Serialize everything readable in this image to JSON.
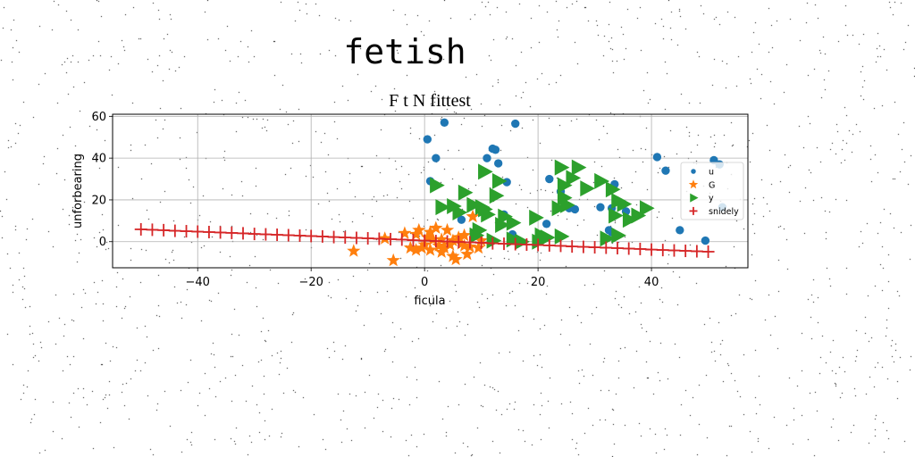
{
  "page": {
    "suptitle": "fetish"
  },
  "chart_data": {
    "type": "scatter",
    "title": "F t N fittest",
    "xlabel": "ficula",
    "ylabel": "unforbearing",
    "xlim": [
      -55,
      57
    ],
    "ylim": [
      -12.5,
      61
    ],
    "xticks": [
      -40,
      -20,
      0,
      20,
      40
    ],
    "yticks": [
      0,
      20,
      40,
      60
    ],
    "grid": true,
    "legend_position": "right",
    "series": [
      {
        "name": "u",
        "marker": "circle",
        "color": "#1f77b4",
        "points": [
          [
            0.5,
            49
          ],
          [
            2,
            40
          ],
          [
            3.5,
            57
          ],
          [
            16,
            56.5
          ],
          [
            12,
            44.5
          ],
          [
            12.5,
            44
          ],
          [
            11,
            40
          ],
          [
            13,
            37.5
          ],
          [
            1,
            29
          ],
          [
            22,
            30
          ],
          [
            14.5,
            28.5
          ],
          [
            33.5,
            27.5
          ],
          [
            24,
            24
          ],
          [
            25.5,
            16
          ],
          [
            26.5,
            15.5
          ],
          [
            31,
            16.5
          ],
          [
            33,
            16
          ],
          [
            35.5,
            14.5
          ],
          [
            14,
            13
          ],
          [
            21.5,
            8.5
          ],
          [
            6.5,
            10.5
          ],
          [
            15.5,
            3.5
          ],
          [
            32.5,
            5.5
          ],
          [
            33,
            4.5
          ],
          [
            45,
            5.5
          ],
          [
            41,
            40.5
          ],
          [
            42.5,
            34
          ],
          [
            51,
            39
          ],
          [
            52,
            37
          ],
          [
            52.5,
            16.5
          ],
          [
            49.5,
            0.5
          ]
        ]
      },
      {
        "name": "G",
        "marker": "star",
        "color": "#ff7f0e",
        "points": [
          [
            -12.5,
            -4.5
          ],
          [
            -5.5,
            -9
          ],
          [
            -7,
            1.5
          ],
          [
            -3.5,
            4
          ],
          [
            -1.5,
            3.5
          ],
          [
            -2.5,
            -3
          ],
          [
            -1.5,
            -4
          ],
          [
            -0.5,
            -3
          ],
          [
            0,
            -1.5
          ],
          [
            0.5,
            2
          ],
          [
            1,
            -4
          ],
          [
            1,
            4.5
          ],
          [
            2,
            6.5
          ],
          [
            2.5,
            -2
          ],
          [
            3,
            1
          ],
          [
            3.5,
            -3
          ],
          [
            4,
            5.5
          ],
          [
            4.5,
            -1.5
          ],
          [
            5,
            0.5
          ],
          [
            5,
            -7
          ],
          [
            5.5,
            -8.5
          ],
          [
            6,
            2
          ],
          [
            6.5,
            -1
          ],
          [
            7,
            -2
          ],
          [
            7.5,
            -6
          ],
          [
            8,
            -2.5
          ],
          [
            8.5,
            12
          ],
          [
            9,
            4
          ],
          [
            9.5,
            -3
          ],
          [
            10,
            0.5
          ],
          [
            -1,
            5.5
          ],
          [
            1.5,
            1
          ],
          [
            3,
            -5
          ],
          [
            7,
            3
          ]
        ]
      },
      {
        "name": "y",
        "marker": "triangle-right",
        "color": "#2ca02c",
        "points": [
          [
            2,
            27
          ],
          [
            7,
            23.5
          ],
          [
            5,
            17
          ],
          [
            3,
            16.5
          ],
          [
            6,
            14
          ],
          [
            8.5,
            17.5
          ],
          [
            10,
            16.5
          ],
          [
            10.5,
            33.5
          ],
          [
            13,
            29
          ],
          [
            12.5,
            22
          ],
          [
            10.5,
            15.5
          ],
          [
            11,
            13
          ],
          [
            14,
            12
          ],
          [
            15.5,
            9
          ],
          [
            13.5,
            8
          ],
          [
            9.5,
            5.5
          ],
          [
            9,
            3
          ],
          [
            12,
            0.5
          ],
          [
            15.5,
            1
          ],
          [
            17,
            0
          ],
          [
            19.5,
            11.5
          ],
          [
            20,
            0
          ],
          [
            20.5,
            3
          ],
          [
            21.5,
            2
          ],
          [
            24,
            2.5
          ],
          [
            24,
            35.5
          ],
          [
            26,
            30.5
          ],
          [
            27,
            35.5
          ],
          [
            24.5,
            27
          ],
          [
            24.5,
            21
          ],
          [
            25,
            17.5
          ],
          [
            23.5,
            16
          ],
          [
            28.5,
            25.5
          ],
          [
            31,
            29
          ],
          [
            33,
            25
          ],
          [
            34,
            19.5
          ],
          [
            35,
            18
          ],
          [
            33.5,
            12.5
          ],
          [
            36,
            10.5
          ],
          [
            37.5,
            12.5
          ],
          [
            39,
            16
          ],
          [
            34,
            3
          ],
          [
            32,
            1.5
          ]
        ]
      },
      {
        "name": "snidely",
        "marker": "plus",
        "color": "#d62728",
        "points": [
          [
            -50,
            5.9
          ],
          [
            -48,
            5.7
          ],
          [
            -46,
            5.5
          ],
          [
            -44,
            5.2
          ],
          [
            -42,
            5
          ],
          [
            -40,
            4.8
          ],
          [
            -38,
            4.6
          ],
          [
            -36,
            4.4
          ],
          [
            -34,
            4.2
          ],
          [
            -32,
            4
          ],
          [
            -30,
            3.7
          ],
          [
            -28,
            3.5
          ],
          [
            -26,
            3.3
          ],
          [
            -24,
            3.1
          ],
          [
            -22,
            2.9
          ],
          [
            -20,
            2.7
          ],
          [
            -18,
            2.5
          ],
          [
            -16,
            2.2
          ],
          [
            -14,
            2
          ],
          [
            -12,
            1.8
          ],
          [
            -10,
            1.6
          ],
          [
            -8,
            1.4
          ],
          [
            -6,
            1.2
          ],
          [
            -4,
            1
          ],
          [
            -2,
            0.7
          ],
          [
            0,
            0.5
          ],
          [
            2,
            0.3
          ],
          [
            4,
            0.1
          ],
          [
            6,
            -0.1
          ],
          [
            8,
            -0.3
          ],
          [
            10,
            -0.5
          ],
          [
            12,
            -0.8
          ],
          [
            14,
            -1
          ],
          [
            16,
            -1.2
          ],
          [
            18,
            -1.4
          ],
          [
            20,
            -1.6
          ],
          [
            22,
            -1.8
          ],
          [
            24,
            -2
          ],
          [
            26,
            -2.3
          ],
          [
            28,
            -2.5
          ],
          [
            30,
            -2.7
          ],
          [
            32,
            -2.9
          ],
          [
            34,
            -3.1
          ],
          [
            36,
            -3.3
          ],
          [
            38,
            -3.5
          ],
          [
            40,
            -3.8
          ],
          [
            42,
            -4
          ],
          [
            44,
            -4.2
          ],
          [
            46,
            -4.4
          ],
          [
            48,
            -4.6
          ],
          [
            50,
            -4.8
          ]
        ]
      }
    ]
  }
}
